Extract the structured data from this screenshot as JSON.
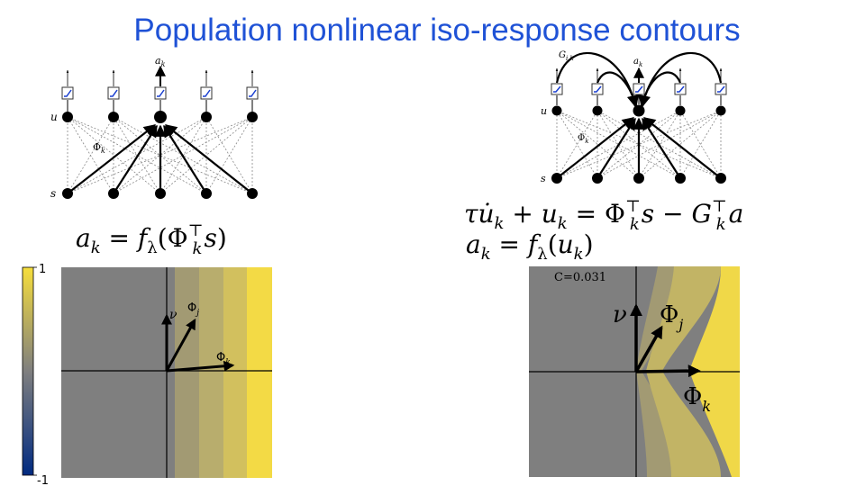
{
  "title": "Population nonlinear iso-response contours",
  "left_network": {
    "output_label": "a",
    "output_sub": "k",
    "u_label": "u",
    "s_label": "s",
    "phi_label": "Φ",
    "phi_sub": "k"
  },
  "right_network": {
    "output_label": "a",
    "output_sub": "k",
    "u_label": "u",
    "s_label": "s",
    "phi_label": "Φ",
    "phi_sub": "k",
    "g_label": "G",
    "g_sub": "i,k"
  },
  "left_equation": {
    "lhs": "a",
    "lhs_sub": "k",
    "eq": " = ",
    "f": "f",
    "f_sub": "λ",
    "open": "(",
    "phi": "Φ",
    "phi_sup": "⊤",
    "phi_sub": "k",
    "arg": "s",
    "close": ")"
  },
  "right_equation": {
    "line1": {
      "tau": "τ",
      "u_dot": "u̇",
      "u_dot_sub": "k",
      "plus": " + ",
      "u": "u",
      "u_sub": "k",
      "eq": " = ",
      "phi": "Φ",
      "phi_sup": "⊤",
      "phi_sub": "k",
      "s": "s",
      "minus": " − ",
      "g": "G",
      "g_sup": "⊤",
      "g_sub": "k",
      "a": "a"
    },
    "line2": {
      "lhs": "a",
      "lhs_sub": "k",
      "eq": " = ",
      "f": "f",
      "f_sub": "λ",
      "open": "(",
      "u": "u",
      "u_sub": "k",
      "close": ")"
    }
  },
  "colorbar": {
    "max_label": "1",
    "min_label": "-1",
    "colors": {
      "top": "#f6de3c",
      "mid": "#7f7f7f",
      "bottom": "#002a80"
    }
  },
  "left_plot": {
    "nu_label": "ν",
    "phi_j_label": "Φ",
    "phi_j_sub": "j",
    "phi_k_label": "Φ",
    "phi_k_sub": "k",
    "band_colors": [
      "#7f7f7f",
      "#a29a73",
      "#b8ad6d",
      "#d2c05e",
      "#f3da45"
    ]
  },
  "right_plot": {
    "annotation": "C=0.031",
    "nu_label": "ν",
    "phi_j_label": "Φ",
    "phi_j_sub": "j",
    "phi_k_label": "Φ",
    "phi_k_sub": "k",
    "band_colors": [
      "#7f7f7f",
      "#a29a73",
      "#c2b465",
      "#f0d848"
    ]
  }
}
